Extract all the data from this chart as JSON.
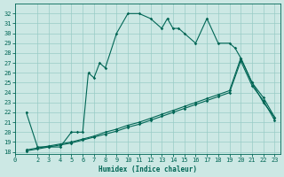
{
  "bg_color": "#cce8e4",
  "grid_color": "#99ccc6",
  "line_color": "#006655",
  "xlabel": "Humidex (Indice chaleur)",
  "xlim": [
    0,
    23.5
  ],
  "ylim": [
    17.8,
    33.0
  ],
  "xticks": [
    0,
    2,
    3,
    4,
    5,
    6,
    7,
    8,
    9,
    10,
    11,
    12,
    13,
    14,
    15,
    16,
    17,
    18,
    19,
    20,
    21,
    22,
    23
  ],
  "yticks": [
    18,
    19,
    20,
    21,
    22,
    23,
    24,
    25,
    26,
    27,
    28,
    29,
    30,
    31,
    32
  ],
  "curve1_x": [
    1,
    2,
    3,
    4,
    5,
    5.5,
    6,
    6.5,
    7,
    7.5,
    8,
    9,
    10,
    11,
    12,
    13,
    13.5,
    14,
    14.5,
    15,
    16,
    17,
    18,
    19,
    19.5,
    20,
    21,
    22,
    23
  ],
  "curve1_y": [
    22.0,
    18.5,
    18.5,
    18.5,
    20.0,
    20.0,
    20.0,
    26.0,
    25.5,
    27.0,
    26.5,
    30.0,
    32.0,
    32.0,
    31.5,
    30.5,
    31.5,
    30.5,
    30.5,
    30.0,
    29.0,
    31.5,
    29.0,
    29.0,
    28.5,
    27.5,
    25.0,
    23.0,
    21.5
  ],
  "curve2_x": [
    1,
    2,
    3,
    4,
    5,
    6,
    7,
    8,
    9,
    10,
    11,
    12,
    13,
    14,
    15,
    16,
    17,
    18,
    19,
    20,
    21,
    22,
    23
  ],
  "curve2_y": [
    18.2,
    18.4,
    18.6,
    18.8,
    19.0,
    19.3,
    19.6,
    20.0,
    20.3,
    20.7,
    21.0,
    21.4,
    21.8,
    22.2,
    22.6,
    23.0,
    23.4,
    23.8,
    24.2,
    27.5,
    25.0,
    23.5,
    21.5
  ],
  "curve3_x": [
    1,
    2,
    3,
    4,
    5,
    6,
    7,
    8,
    9,
    10,
    11,
    12,
    13,
    14,
    15,
    16,
    17,
    18,
    19,
    20,
    21,
    22,
    23
  ],
  "curve3_y": [
    18.1,
    18.3,
    18.5,
    18.7,
    18.9,
    19.2,
    19.5,
    19.8,
    20.1,
    20.5,
    20.8,
    21.2,
    21.6,
    22.0,
    22.4,
    22.8,
    23.2,
    23.6,
    24.0,
    27.2,
    24.7,
    23.2,
    21.2
  ],
  "linewidth": 0.8,
  "marker_size": 1.8
}
